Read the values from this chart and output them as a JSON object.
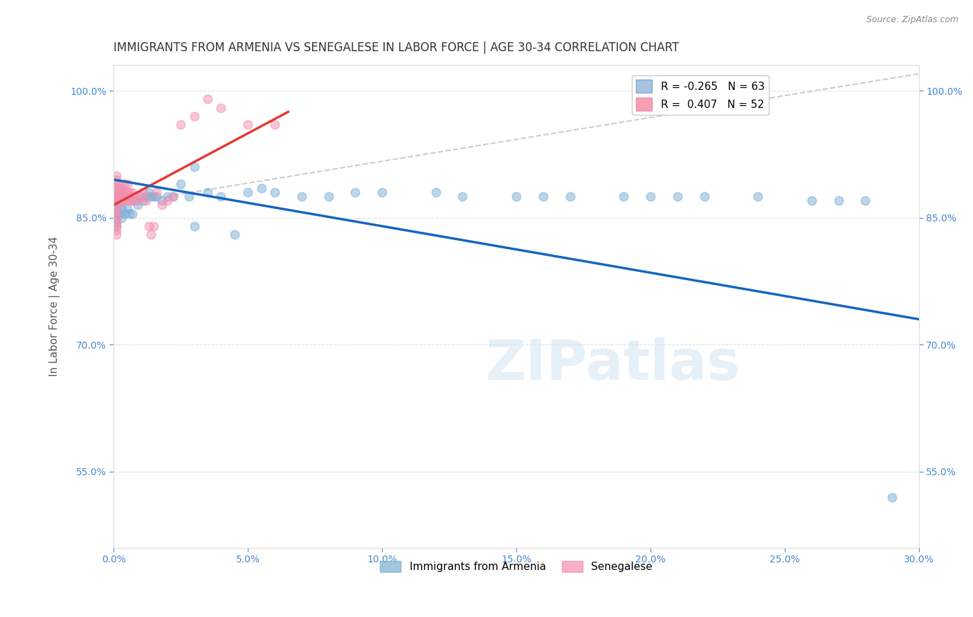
{
  "title": "IMMIGRANTS FROM ARMENIA VS SENEGALESE IN LABOR FORCE | AGE 30-34 CORRELATION CHART",
  "source": "Source: ZipAtlas.com",
  "ylabel": "In Labor Force | Age 30-34",
  "xlim": [
    0.0,
    0.3
  ],
  "ylim": [
    0.46,
    1.03
  ],
  "xticks": [
    0.0,
    0.05,
    0.1,
    0.15,
    0.2,
    0.25,
    0.3
  ],
  "yticks": [
    0.55,
    0.7,
    0.85,
    1.0
  ],
  "ytick_labels": [
    "55.0%",
    "70.0%",
    "85.0%",
    "100.0%"
  ],
  "xtick_labels": [
    "0.0%",
    "5.0%",
    "10.0%",
    "15.0%",
    "20.0%",
    "25.0%",
    "30.0%"
  ],
  "legend_entries": [
    {
      "label": "R = -0.265   N = 63",
      "color": "#a8c4e0"
    },
    {
      "label": "R =  0.407   N = 52",
      "color": "#f4a0b0"
    }
  ],
  "armenia_x": [
    0.001,
    0.001,
    0.001,
    0.001,
    0.001,
    0.001,
    0.001,
    0.001,
    0.002,
    0.002,
    0.002,
    0.002,
    0.003,
    0.003,
    0.003,
    0.004,
    0.004,
    0.005,
    0.005,
    0.006,
    0.006,
    0.007,
    0.007,
    0.008,
    0.009,
    0.01,
    0.011,
    0.012,
    0.013,
    0.014,
    0.015,
    0.016,
    0.018,
    0.02,
    0.022,
    0.025,
    0.028,
    0.03,
    0.035,
    0.04,
    0.05,
    0.055,
    0.06,
    0.07,
    0.08,
    0.09,
    0.1,
    0.12,
    0.13,
    0.15,
    0.16,
    0.17,
    0.19,
    0.2,
    0.21,
    0.22,
    0.24,
    0.26,
    0.27,
    0.28,
    0.03,
    0.045,
    0.29
  ],
  "armenia_y": [
    0.875,
    0.87,
    0.865,
    0.86,
    0.855,
    0.85,
    0.845,
    0.84,
    0.88,
    0.87,
    0.865,
    0.855,
    0.875,
    0.86,
    0.85,
    0.87,
    0.855,
    0.875,
    0.86,
    0.875,
    0.855,
    0.87,
    0.855,
    0.87,
    0.865,
    0.875,
    0.87,
    0.875,
    0.88,
    0.875,
    0.875,
    0.875,
    0.87,
    0.875,
    0.875,
    0.89,
    0.875,
    0.91,
    0.88,
    0.875,
    0.88,
    0.885,
    0.88,
    0.875,
    0.875,
    0.88,
    0.88,
    0.88,
    0.875,
    0.875,
    0.875,
    0.875,
    0.875,
    0.875,
    0.875,
    0.875,
    0.875,
    0.87,
    0.87,
    0.87,
    0.84,
    0.83,
    0.52
  ],
  "senegal_x": [
    0.001,
    0.001,
    0.001,
    0.001,
    0.001,
    0.001,
    0.001,
    0.001,
    0.001,
    0.001,
    0.001,
    0.001,
    0.001,
    0.001,
    0.001,
    0.002,
    0.002,
    0.002,
    0.002,
    0.002,
    0.003,
    0.003,
    0.003,
    0.003,
    0.004,
    0.004,
    0.004,
    0.005,
    0.005,
    0.005,
    0.006,
    0.006,
    0.007,
    0.007,
    0.008,
    0.009,
    0.01,
    0.011,
    0.012,
    0.013,
    0.014,
    0.015,
    0.016,
    0.018,
    0.02,
    0.022,
    0.025,
    0.03,
    0.035,
    0.04,
    0.05,
    0.06
  ],
  "senegal_y": [
    0.875,
    0.87,
    0.865,
    0.86,
    0.855,
    0.85,
    0.845,
    0.84,
    0.835,
    0.83,
    0.88,
    0.885,
    0.89,
    0.895,
    0.9,
    0.87,
    0.875,
    0.88,
    0.885,
    0.89,
    0.87,
    0.875,
    0.88,
    0.885,
    0.87,
    0.88,
    0.89,
    0.87,
    0.88,
    0.89,
    0.87,
    0.88,
    0.87,
    0.88,
    0.875,
    0.87,
    0.875,
    0.88,
    0.87,
    0.84,
    0.83,
    0.84,
    0.88,
    0.865,
    0.87,
    0.875,
    0.96,
    0.97,
    0.99,
    0.98,
    0.96,
    0.96
  ],
  "armenia_color": "#7bafd4",
  "senegal_color": "#f48fb1",
  "armenia_line_color": "#1565c0",
  "senegal_line_color": "#e53935",
  "senegal_dashed_color": "#cccccc",
  "trend_line_armenia": {
    "x0": 0.0,
    "x1": 0.3,
    "y0": 0.895,
    "y1": 0.73
  },
  "trend_line_senegal_solid": {
    "x0": 0.0,
    "x1": 0.065,
    "y0": 0.865,
    "y1": 0.975
  },
  "trend_line_senegal_dashed": {
    "x0": 0.0,
    "x1": 0.3,
    "y0": 0.865,
    "y1": 1.02
  },
  "background_color": "#ffffff",
  "grid_color": "#dddddd",
  "title_color": "#333333",
  "axis_color": "#4488cc",
  "watermark": "ZIPatlas",
  "marker_size": 9,
  "marker_alpha": 0.5,
  "title_fontsize": 12,
  "axis_label_fontsize": 11,
  "tick_fontsize": 10
}
